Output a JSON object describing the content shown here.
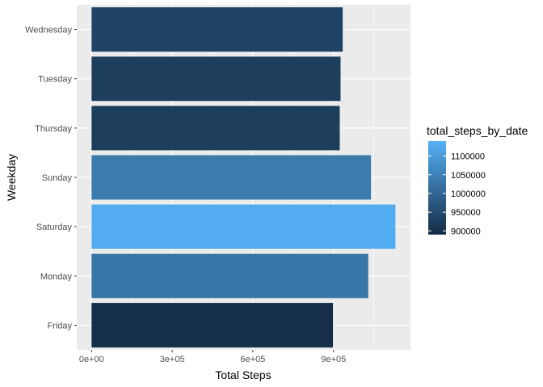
{
  "chart_data": {
    "type": "bar",
    "orientation": "horizontal",
    "categories": [
      "Friday",
      "Monday",
      "Saturday",
      "Sunday",
      "Thursday",
      "Tuesday",
      "Wednesday"
    ],
    "values": [
      898000,
      1029000,
      1130000,
      1039000,
      923000,
      926000,
      934000
    ],
    "xlabel": "Total Steps",
    "ylabel": "Weekday",
    "x_ticks": [
      0,
      300000,
      600000,
      900000
    ],
    "x_tick_labels": [
      "0e+00",
      "3e+05",
      "6e+05",
      "9e+05"
    ],
    "xlim": [
      -55000,
      1186000
    ],
    "legend": {
      "title": "total_steps_by_date",
      "placement": "right",
      "type": "gradient",
      "min": 890000,
      "max": 1140000,
      "low_color": "#132B43",
      "high_color": "#56B1F7",
      "breaks": [
        900000,
        950000,
        1000000,
        1050000,
        1100000
      ],
      "labels": [
        "900000",
        "950000",
        "1000000",
        "1050000",
        "1100000"
      ]
    },
    "grid": true,
    "panel_background": "#EBEBEB"
  }
}
